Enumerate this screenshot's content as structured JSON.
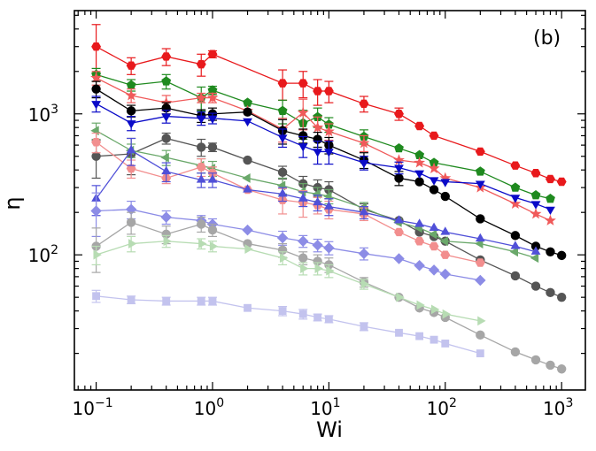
{
  "chart_data": {
    "type": "scatter",
    "title": "",
    "panel_label": "(b)",
    "xlabel": "Wi",
    "ylabel": "η",
    "xscale": "log",
    "yscale": "log",
    "xlim": [
      0.065,
      1600
    ],
    "ylim": [
      11,
      5400
    ],
    "x_ticks": [
      {
        "value": 0.1,
        "base": "10",
        "exp": "−1"
      },
      {
        "value": 1,
        "base": "10",
        "exp": "0"
      },
      {
        "value": 10,
        "base": "10",
        "exp": "1"
      },
      {
        "value": 100,
        "base": "10",
        "exp": "2"
      },
      {
        "value": 1000,
        "base": "10",
        "exp": "3"
      }
    ],
    "y_ticks": [
      {
        "value": 100,
        "base": "10",
        "exp": "2"
      },
      {
        "value": 1000,
        "base": "10",
        "exp": "3"
      }
    ],
    "grid": false,
    "legend": "none",
    "series": [
      {
        "color": "#e8191c",
        "marker": "hexagon",
        "x": [
          0.1,
          0.2,
          0.4,
          0.8,
          1,
          4,
          6,
          8,
          10,
          20,
          40,
          60,
          80,
          200,
          400,
          600,
          800,
          1000
        ],
        "y": [
          3000,
          2200,
          2550,
          2250,
          2650,
          1650,
          1650,
          1450,
          1450,
          1180,
          1000,
          820,
          700,
          540,
          430,
          380,
          345,
          330
        ],
        "err": [
          1300,
          300,
          350,
          400,
          150,
          400,
          350,
          300,
          250,
          150,
          100,
          0,
          0,
          0,
          0,
          0,
          0,
          0
        ]
      },
      {
        "color": "#1f8a1f",
        "marker": "pentagon",
        "x": [
          0.1,
          0.2,
          0.4,
          0.8,
          1,
          2,
          4,
          6,
          8,
          10,
          20,
          40,
          60,
          80,
          200,
          400,
          600,
          800
        ],
        "y": [
          1900,
          1600,
          1700,
          1300,
          1470,
          1200,
          1050,
          860,
          950,
          840,
          690,
          570,
          510,
          450,
          390,
          300,
          265,
          250
        ],
        "err": [
          200,
          150,
          200,
          250,
          100,
          0,
          200,
          200,
          150,
          100,
          80,
          0,
          0,
          0,
          0,
          0,
          0,
          0
        ]
      },
      {
        "color": "#f05a5a",
        "marker": "star",
        "x": [
          0.1,
          0.2,
          0.4,
          0.8,
          1,
          2,
          4,
          6,
          8,
          10,
          20,
          40,
          60,
          80,
          100,
          200,
          400,
          600,
          800
        ],
        "y": [
          1800,
          1350,
          1200,
          1300,
          1300,
          1050,
          780,
          1020,
          800,
          750,
          620,
          470,
          450,
          410,
          350,
          300,
          230,
          195,
          175
        ],
        "err": [
          200,
          150,
          150,
          100,
          100,
          0,
          150,
          250,
          150,
          100,
          80,
          0,
          0,
          0,
          0,
          0,
          0,
          0,
          0
        ]
      },
      {
        "color": "#000000",
        "marker": "circle",
        "x": [
          0.1,
          0.2,
          0.4,
          0.8,
          1,
          2,
          4,
          6,
          8,
          10,
          20,
          40,
          60,
          80,
          100,
          200,
          400,
          600,
          800,
          1000
        ],
        "y": [
          1500,
          1050,
          1100,
          970,
          1000,
          1030,
          760,
          700,
          660,
          600,
          470,
          350,
          330,
          290,
          260,
          180,
          137,
          115,
          105,
          99
        ],
        "err": [
          200,
          100,
          100,
          100,
          100,
          0,
          150,
          80,
          80,
          80,
          60,
          40,
          0,
          0,
          0,
          0,
          0,
          0,
          0,
          0
        ]
      },
      {
        "color": "#0a0ac8",
        "marker": "triangle-down",
        "x": [
          0.1,
          0.2,
          0.4,
          0.8,
          1,
          2,
          4,
          6,
          8,
          10,
          20,
          40,
          60,
          80,
          100,
          200,
          400,
          600,
          800
        ],
        "y": [
          1180,
          860,
          960,
          930,
          930,
          890,
          680,
          590,
          540,
          540,
          450,
          415,
          380,
          340,
          330,
          320,
          255,
          230,
          210
        ],
        "err": [
          150,
          100,
          100,
          100,
          80,
          0,
          100,
          100,
          100,
          100,
          50,
          40,
          0,
          0,
          0,
          0,
          0,
          0,
          0
        ]
      },
      {
        "color": "#555555",
        "marker": "circle",
        "x": [
          0.1,
          0.2,
          0.4,
          0.8,
          1,
          2,
          4,
          6,
          8,
          10,
          20,
          40,
          60,
          80,
          100,
          200,
          400,
          600,
          800,
          1000
        ],
        "y": [
          500,
          520,
          670,
          580,
          580,
          470,
          385,
          320,
          300,
          290,
          210,
          175,
          145,
          135,
          125,
          92,
          71,
          60,
          54,
          50
        ],
        "err": [
          150,
          150,
          60,
          80,
          40,
          0,
          40,
          40,
          40,
          40,
          20,
          0,
          0,
          0,
          0,
          0,
          0,
          0,
          0,
          0
        ]
      },
      {
        "color": "#6aa86a",
        "marker": "triangle-left",
        "x": [
          0.1,
          0.2,
          0.4,
          0.8,
          1,
          2,
          4,
          6,
          8,
          10,
          20,
          40,
          60,
          80,
          100,
          200,
          400,
          600
        ],
        "y": [
          760,
          550,
          490,
          430,
          410,
          350,
          310,
          280,
          270,
          260,
          215,
          170,
          155,
          140,
          125,
          120,
          105,
          95
        ],
        "err": [
          100,
          60,
          60,
          50,
          50,
          0,
          40,
          40,
          30,
          30,
          20,
          0,
          0,
          0,
          0,
          0,
          0,
          0
        ]
      },
      {
        "color": "#f28e8e",
        "marker": "hexagon",
        "x": [
          0.1,
          0.2,
          0.4,
          0.8,
          1,
          2,
          4,
          6,
          8,
          10,
          20,
          40,
          60,
          80,
          100,
          200
        ],
        "y": [
          630,
          410,
          350,
          420,
          380,
          290,
          245,
          235,
          225,
          210,
          195,
          145,
          125,
          115,
          100,
          88
        ],
        "err": [
          100,
          60,
          30,
          60,
          40,
          0,
          50,
          50,
          30,
          30,
          20,
          0,
          0,
          0,
          0,
          0
        ]
      },
      {
        "color": "#5050d8",
        "marker": "triangle-up",
        "x": [
          0.1,
          0.2,
          0.4,
          0.8,
          1,
          2,
          4,
          6,
          8,
          10,
          20,
          40,
          60,
          80,
          100,
          200,
          400,
          600
        ],
        "y": [
          250,
          550,
          390,
          340,
          340,
          290,
          270,
          250,
          235,
          220,
          200,
          175,
          165,
          155,
          145,
          130,
          115,
          105
        ],
        "err": [
          60,
          120,
          60,
          40,
          40,
          0,
          30,
          30,
          30,
          30,
          20,
          0,
          0,
          0,
          0,
          0,
          0,
          0
        ]
      },
      {
        "color": "#8c8ce6",
        "marker": "diamond",
        "x": [
          0.1,
          0.2,
          0.4,
          0.8,
          1,
          2,
          4,
          6,
          8,
          10,
          20,
          40,
          60,
          80,
          100,
          200
        ],
        "y": [
          205,
          210,
          185,
          175,
          165,
          150,
          132,
          125,
          117,
          112,
          102,
          94,
          84,
          78,
          73,
          66
        ],
        "err": [
          70,
          30,
          20,
          15,
          15,
          0,
          15,
          12,
          12,
          12,
          10,
          0,
          0,
          0,
          0,
          0
        ]
      },
      {
        "color": "#a6a6a6",
        "marker": "circle",
        "x": [
          0.1,
          0.2,
          0.4,
          0.8,
          1,
          2,
          4,
          6,
          8,
          10,
          20,
          40,
          60,
          80,
          100,
          200,
          400,
          600,
          800,
          1000
        ],
        "y": [
          115,
          170,
          140,
          165,
          150,
          120,
          108,
          95,
          90,
          85,
          64,
          50,
          42,
          39,
          36,
          27,
          20.5,
          18,
          16.5,
          15.5
        ],
        "err": [
          40,
          30,
          20,
          20,
          15,
          0,
          12,
          10,
          10,
          10,
          5,
          0,
          0,
          0,
          0,
          0,
          0,
          0,
          0,
          0
        ]
      },
      {
        "color": "#b7dcb3",
        "marker": "triangle-right",
        "x": [
          0.1,
          0.2,
          0.4,
          0.8,
          1,
          2,
          4,
          6,
          8,
          10,
          20,
          40,
          60,
          80,
          100,
          200
        ],
        "y": [
          100,
          120,
          125,
          120,
          115,
          110,
          95,
          80,
          80,
          77,
          62,
          50,
          44,
          41,
          38,
          34
        ],
        "err": [
          15,
          15,
          12,
          10,
          10,
          0,
          10,
          8,
          8,
          8,
          5,
          0,
          0,
          0,
          0,
          0
        ]
      },
      {
        "color": "#c3c3ee",
        "marker": "square",
        "x": [
          0.1,
          0.2,
          0.4,
          0.8,
          1,
          2,
          4,
          6,
          8,
          10,
          20,
          40,
          60,
          80,
          100,
          200
        ],
        "y": [
          51,
          48,
          47,
          47,
          47,
          42,
          40,
          38,
          36,
          35,
          31,
          28,
          26.5,
          25,
          23.5,
          20
        ],
        "err": [
          5,
          3,
          3,
          3,
          3,
          0,
          3,
          3,
          2,
          2,
          2,
          0,
          0,
          0,
          0,
          0
        ]
      }
    ]
  }
}
